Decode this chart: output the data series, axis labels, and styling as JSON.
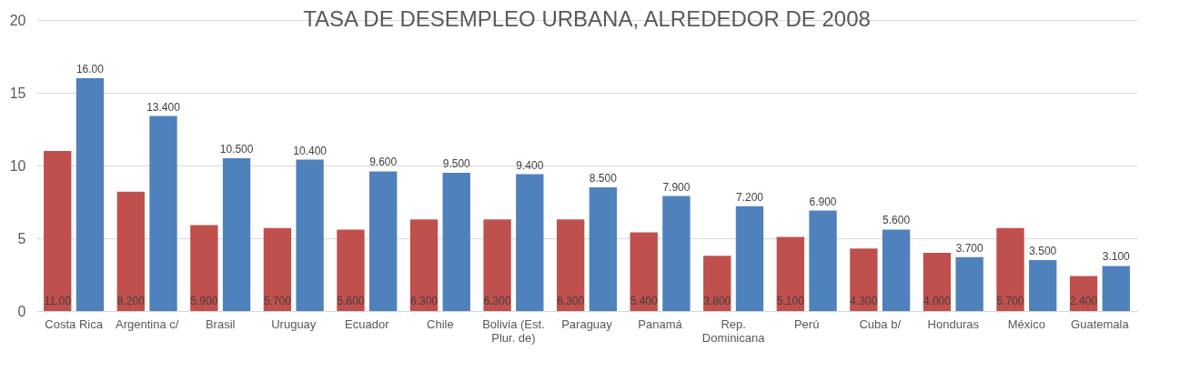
{
  "chart_data": {
    "type": "bar",
    "title": "TASA DE DESEMPLEO URBANA, ALREDEDOR DE 2008",
    "categories": [
      "Costa Rica",
      "Argentina c/",
      "Brasil",
      "Uruguay",
      "Ecuador",
      "Chile",
      "Bolivia (Est. Plur. de)",
      "Paraguay",
      "Panamá",
      "Rep. Dominicana",
      "Perú",
      "Cuba b/",
      "Honduras",
      "México",
      "Guatemala"
    ],
    "series": [
      {
        "color": "#c0504d",
        "values": [
          11.0,
          8.2,
          5.9,
          5.7,
          5.6,
          6.3,
          6.3,
          6.3,
          5.4,
          3.8,
          5.1,
          4.3,
          4.0,
          5.7,
          2.4
        ],
        "value_labels": [
          "11.00",
          "8.200",
          "5.900",
          "5.700",
          "5.600",
          "6.300",
          "6.300",
          "6.300",
          "5.400",
          "3.800",
          "5.100",
          "4.300",
          "4.000",
          "5.700",
          "2.400"
        ]
      },
      {
        "color": "#4f81bd",
        "values": [
          16.0,
          13.4,
          10.5,
          10.4,
          9.6,
          9.5,
          9.4,
          8.5,
          7.9,
          7.2,
          6.9,
          5.6,
          3.7,
          3.5,
          3.1
        ],
        "value_labels": [
          "16.00",
          "13.400",
          "10.500",
          "10.400",
          "9.600",
          "9.500",
          "9.400",
          "8.500",
          "7.900",
          "7.200",
          "6.900",
          "5.600",
          "3.700",
          "3.500",
          "3.100"
        ]
      }
    ],
    "ylim": [
      0,
      20
    ],
    "yticks": [
      0,
      5,
      10,
      15,
      20
    ],
    "grid": "y",
    "legend": false
  }
}
